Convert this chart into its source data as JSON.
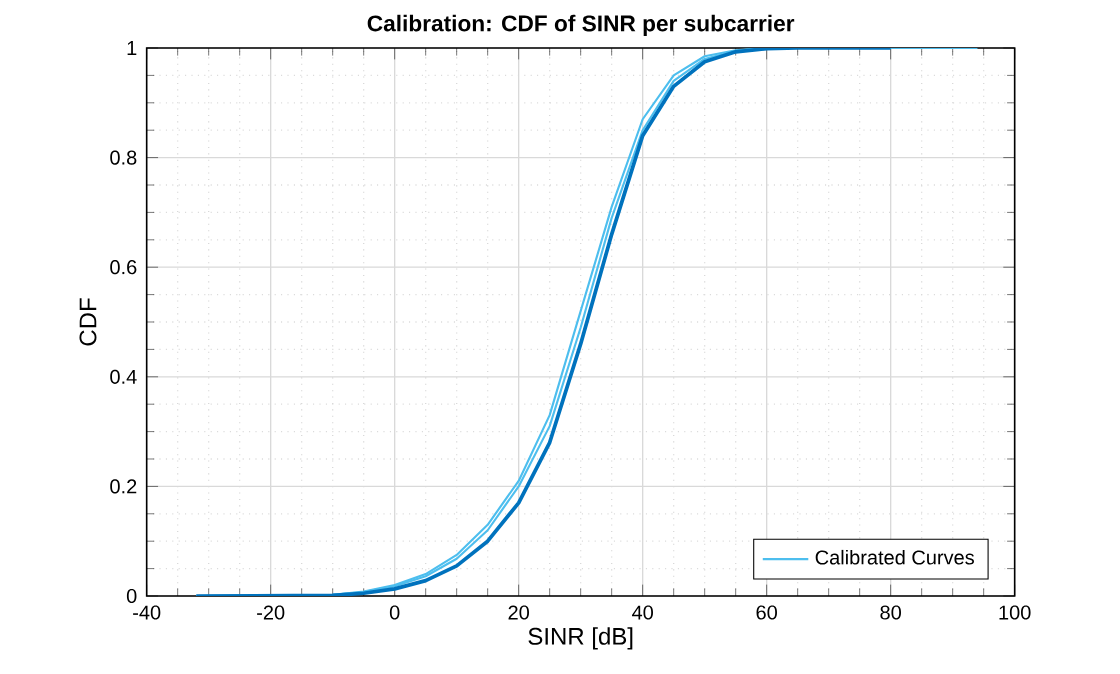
{
  "chart_data": {
    "type": "line",
    "title": "Calibration: CDF of SINR per subcarrier",
    "xlabel": "SINR [dB]",
    "ylabel": "CDF",
    "xlim": [
      -40,
      100
    ],
    "xticks": [
      -40,
      -20,
      0,
      20,
      40,
      60,
      80,
      100
    ],
    "ylim": [
      0,
      1
    ],
    "yticks": [
      0,
      0.2,
      0.4,
      0.6,
      0.8,
      1
    ],
    "grid": true,
    "legend": "bottom right",
    "marker": "none",
    "line_style": "solid",
    "series": [
      {
        "name": "Calibrated Curves",
        "color": "#4dbeee",
        "x": [
          -32,
          -10,
          -5,
          0,
          5,
          10,
          15,
          20,
          25,
          30,
          35,
          40,
          45,
          50,
          55,
          60,
          94
        ],
        "values": [
          0,
          0.002,
          0.008,
          0.02,
          0.04,
          0.075,
          0.13,
          0.21,
          0.33,
          0.52,
          0.71,
          0.87,
          0.95,
          0.985,
          0.996,
          1,
          1
        ]
      },
      {
        "color": "#4dbeee",
        "x": [
          -32,
          -10,
          -5,
          0,
          5,
          10,
          15,
          20,
          25,
          30,
          35,
          40,
          45,
          50,
          55,
          60,
          90
        ],
        "values": [
          0,
          0.002,
          0.007,
          0.018,
          0.036,
          0.068,
          0.12,
          0.2,
          0.31,
          0.49,
          0.69,
          0.85,
          0.94,
          0.98,
          0.995,
          1,
          1
        ]
      },
      {
        "color": "#0072bd",
        "x": [
          -32,
          -10,
          -5,
          0,
          5,
          10,
          15,
          20,
          25,
          30,
          35,
          40,
          45,
          50,
          55,
          60,
          65,
          80
        ],
        "values": [
          0,
          0.001,
          0.005,
          0.013,
          0.028,
          0.055,
          0.1,
          0.17,
          0.28,
          0.46,
          0.66,
          0.84,
          0.93,
          0.975,
          0.993,
          0.999,
          1,
          1
        ]
      }
    ]
  }
}
